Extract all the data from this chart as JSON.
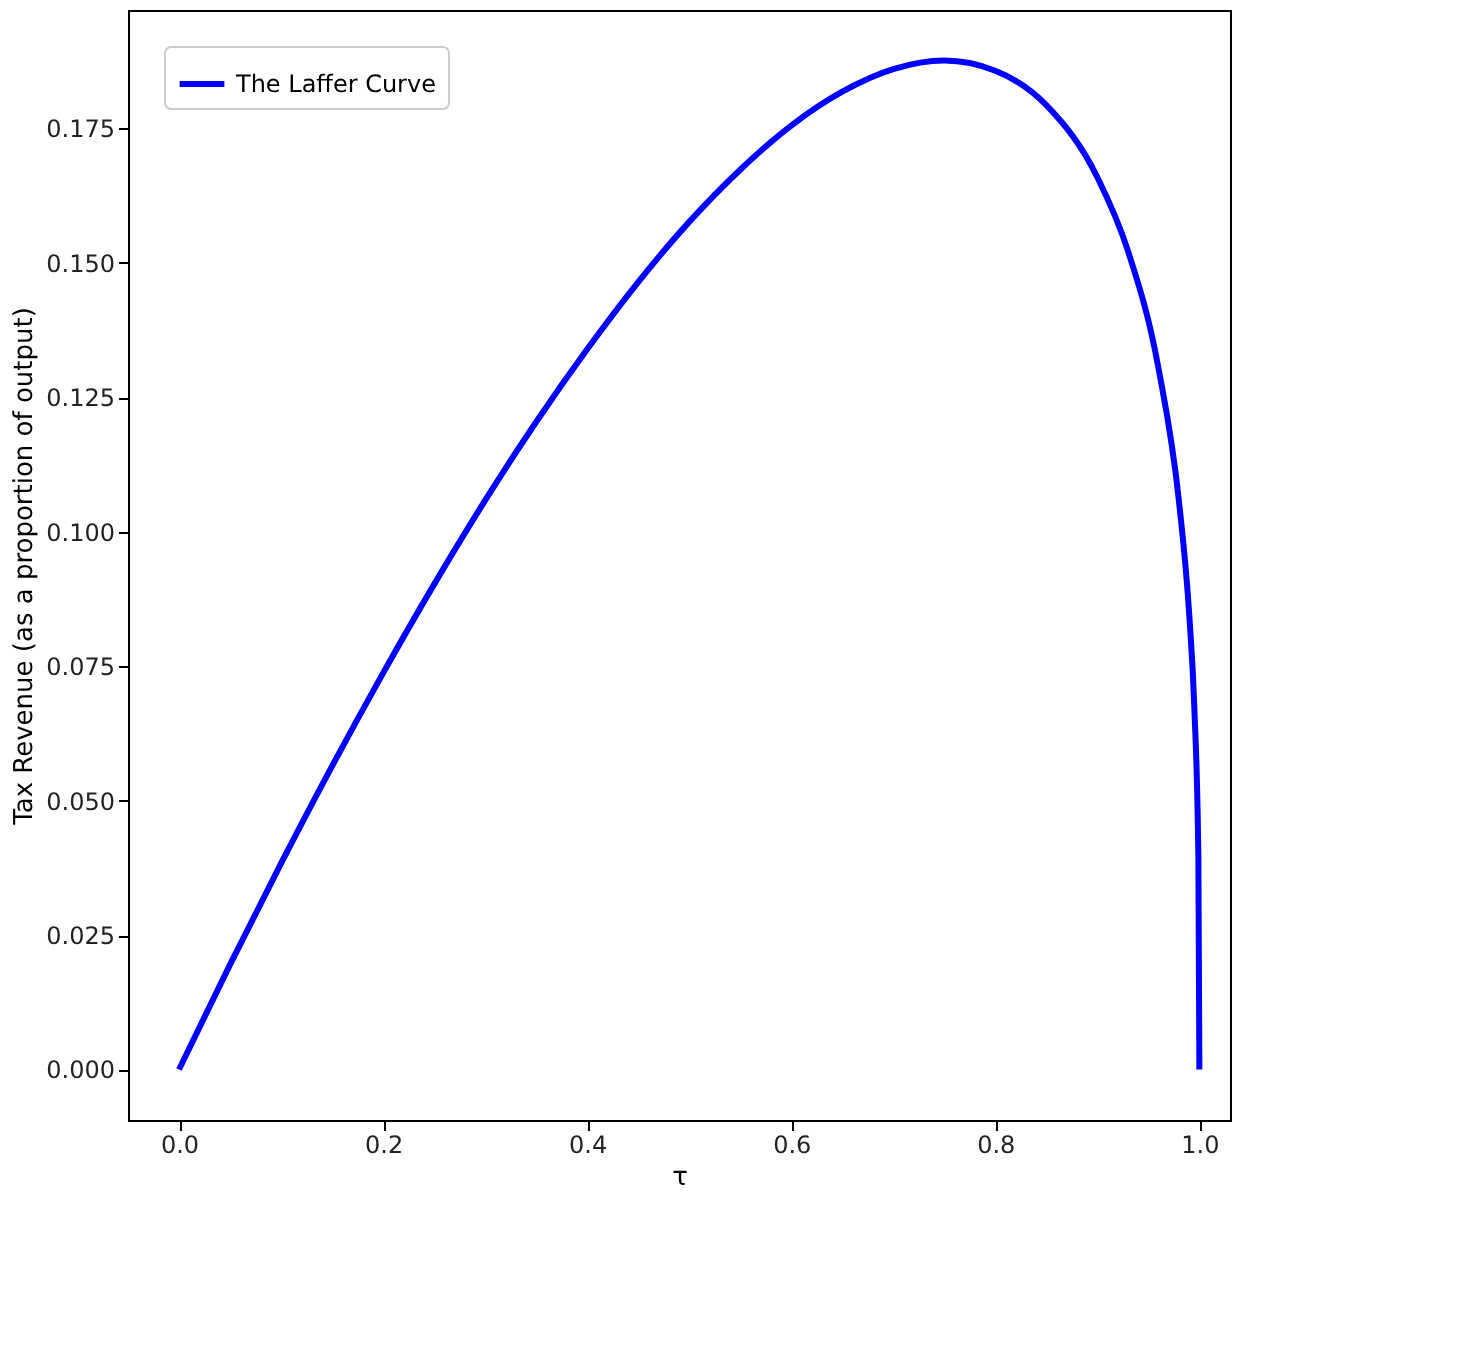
{
  "chart_data": {
    "type": "line",
    "xlabel": "τ",
    "ylabel": "Tax Revenue (as a proportion of output)",
    "x": [
      0,
      0.05,
      0.1,
      0.15,
      0.2,
      0.25,
      0.3,
      0.35,
      0.4,
      0.45,
      0.5,
      0.55,
      0.6,
      0.65,
      0.7,
      0.75,
      0.8,
      0.85,
      0.9,
      0.93,
      0.96,
      0.98,
      0.99,
      0.995,
      0.999,
      1.0
    ],
    "series": [
      {
        "name": "The Laffer Curve",
        "color": "#0000ff",
        "values": [
          0,
          0.0195,
          0.0383,
          0.0564,
          0.0737,
          0.0902,
          0.1058,
          0.1204,
          0.1339,
          0.1464,
          0.1576,
          0.1673,
          0.1755,
          0.1818,
          0.186,
          0.1876,
          0.1857,
          0.1793,
          0.1659,
          0.1522,
          0.1303,
          0.1056,
          0.0847,
          0.0675,
          0.0397,
          0
        ]
      }
    ],
    "xlim": [
      -0.05,
      1.03
    ],
    "ylim": [
      -0.0094,
      0.197
    ],
    "xticks": [
      {
        "value": 0,
        "label": "0.0"
      },
      0.2,
      0.4,
      0.6,
      0.8,
      {
        "value": 1,
        "label": "1.0"
      }
    ],
    "yticks": [
      {
        "value": 0,
        "label": "0.000"
      },
      {
        "value": 0.025,
        "label": "0.025"
      },
      {
        "value": 0.05,
        "label": "0.050"
      },
      {
        "value": 0.075,
        "label": "0.075"
      },
      {
        "value": 0.1,
        "label": "0.100"
      },
      {
        "value": 0.125,
        "label": "0.125"
      },
      {
        "value": 0.15,
        "label": "0.150"
      },
      {
        "value": 0.175,
        "label": "0.175"
      }
    ],
    "grid": false,
    "legend": "top left",
    "marker": "none",
    "line_style": "solid"
  }
}
